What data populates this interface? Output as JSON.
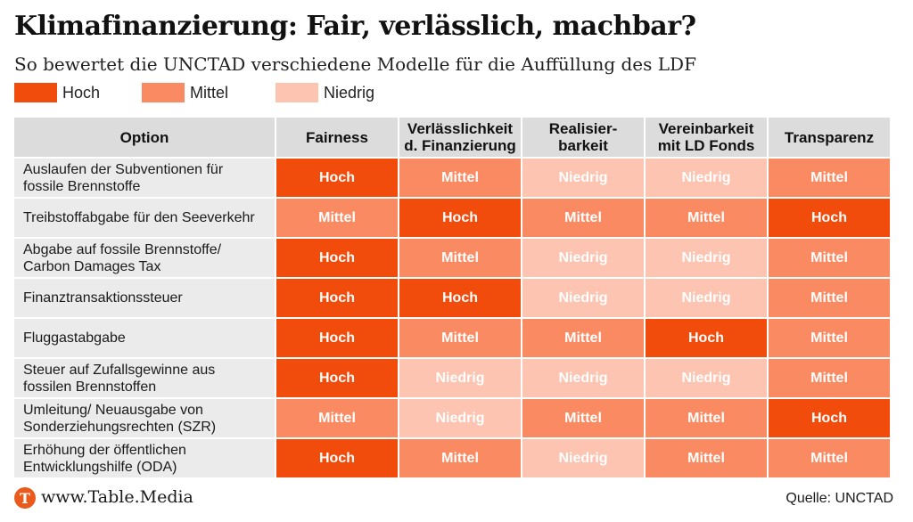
{
  "title": "Klimafinanzierung: Fair, verlässlich, machbar?",
  "subtitle": "So bewertet die UNCTAD verschiedene Modelle für die Auffüllung des LDF",
  "legend": [
    {
      "label": "Hoch",
      "level": "hoch"
    },
    {
      "label": "Mittel",
      "level": "mittel"
    },
    {
      "label": "Niedrig",
      "level": "niedrig"
    }
  ],
  "colors": {
    "hoch": "#f24c0c",
    "mittel": "#f98a62",
    "niedrig": "#fcc4b1",
    "header_bg": "#dcdcdc",
    "row_bg": "#ebebeb",
    "logo": "#ea5a1c"
  },
  "chart_data": {
    "type": "table",
    "corner_label": "Option",
    "columns": [
      "Fairness",
      "Verlässlichkeit d. Finanzierung",
      "Realisier-barkeit",
      "Vereinbarkeit mit LD Fonds",
      "Transparenz"
    ],
    "column_lines": [
      [
        "Fairness"
      ],
      [
        "Verlässlichkeit",
        "d. Finanzierung"
      ],
      [
        "Realisier-",
        "barkeit"
      ],
      [
        "Vereinbarkeit",
        "mit LD Fonds"
      ],
      [
        "Transparenz"
      ]
    ],
    "rows": [
      {
        "label_lines": [
          "Auslaufen der Subventionen für",
          "fossile Brennstoffe"
        ],
        "values": [
          "Hoch",
          "Mittel",
          "Niedrig",
          "Niedrig",
          "Mittel"
        ]
      },
      {
        "label_lines": [
          "Treibstoffabgabe für den Seeverkehr"
        ],
        "values": [
          "Mittel",
          "Hoch",
          "Mittel",
          "Mittel",
          "Hoch"
        ]
      },
      {
        "label_lines": [
          "Abgabe auf fossile Brennstoffe/",
          "Carbon Damages Tax"
        ],
        "values": [
          "Hoch",
          "Mittel",
          "Niedrig",
          "Niedrig",
          "Mittel"
        ]
      },
      {
        "label_lines": [
          "Finanztransaktionssteuer"
        ],
        "values": [
          "Hoch",
          "Hoch",
          "Niedrig",
          "Niedrig",
          "Mittel"
        ]
      },
      {
        "label_lines": [
          "Fluggastabgabe"
        ],
        "values": [
          "Hoch",
          "Mittel",
          "Mittel",
          "Hoch",
          "Mittel"
        ]
      },
      {
        "label_lines": [
          "Steuer auf Zufallsgewinne aus",
          "fossilen Brennstoffen"
        ],
        "values": [
          "Hoch",
          "Niedrig",
          "Niedrig",
          "Niedrig",
          "Mittel"
        ]
      },
      {
        "label_lines": [
          "Umleitung/ Neuausgabe von",
          "Sonderziehungsrechten (SZR)"
        ],
        "values": [
          "Mittel",
          "Niedrig",
          "Mittel",
          "Mittel",
          "Hoch"
        ]
      },
      {
        "label_lines": [
          "Erhöhung der öffentlichen",
          "Entwicklungshilfe (ODA)"
        ],
        "values": [
          "Hoch",
          "Mittel",
          "Niedrig",
          "Mittel",
          "Mittel"
        ]
      }
    ]
  },
  "footer": {
    "logo_letter": "T",
    "site": "www.Table.Media",
    "source": "Quelle: UNCTAD"
  }
}
